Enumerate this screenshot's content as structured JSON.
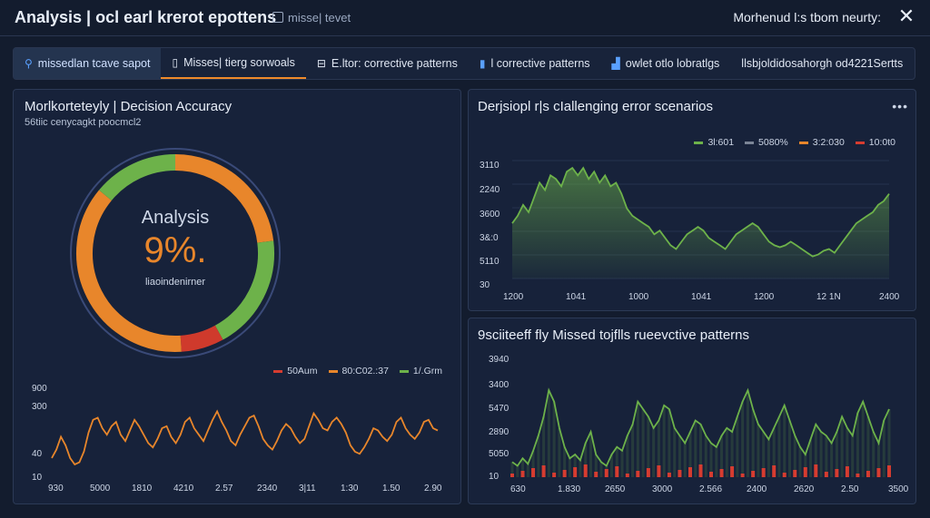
{
  "window": {
    "title": "Analysis | ocl earl krerot epottens",
    "subtitle": "misse| tevet",
    "right_title": "Morhenud l:s tbom neurty:",
    "close_icon": "close-icon"
  },
  "tabs": [
    {
      "label": "missedlan tcave sapot",
      "icon": "person-icon"
    },
    {
      "label": "Misses| tierg sorwoals",
      "icon": "document-icon"
    },
    {
      "label": "E.ltor: corrective patterns",
      "icon": "filter-icon"
    },
    {
      "label": "l corrective patterns",
      "icon": "bookmark-icon"
    },
    {
      "label": "owlet otlo lobratlgs",
      "icon": "chart-icon"
    },
    {
      "label": "llsbjoldidosahorgh od4221Sertts",
      "icon": ""
    }
  ],
  "left_panel": {
    "title": "Morlkorteteyly | Decision Accuracy",
    "subtitle": "56tiic cenycagkt poocmcl2",
    "donut": {
      "label": "Analysis",
      "value_text": "9%.",
      "caption": "liaoindenirner",
      "segments": [
        {
          "color": "#e8862b",
          "fraction": 0.23
        },
        {
          "color": "#6db24a",
          "fraction": 0.19
        },
        {
          "color": "#cf3a2c",
          "fraction": 0.07
        },
        {
          "color": "#e8862b",
          "fraction": 0.37
        },
        {
          "color": "#6db24a",
          "fraction": 0.14
        }
      ]
    },
    "chart_data": {
      "type": "line",
      "legend": [
        {
          "name": "50Aum",
          "color": "#d63c30"
        },
        {
          "name": "80:C02.:37",
          "color": "#e8862b"
        },
        {
          "name": "1/.Grm",
          "color": "#6db24a"
        }
      ],
      "yticks": [
        "900",
        "300",
        "40",
        "10"
      ],
      "xticks": [
        "930",
        "5000",
        "1810",
        "4210",
        "2.57",
        "2340",
        "3|11",
        "1:30",
        "1.50",
        "2.90"
      ],
      "series": [
        {
          "color": "#e8862b",
          "values": [
            60,
            100,
            160,
            120,
            60,
            30,
            40,
            90,
            180,
            240,
            250,
            200,
            170,
            210,
            230,
            170,
            140,
            190,
            240,
            210,
            170,
            130,
            110,
            150,
            200,
            210,
            160,
            130,
            170,
            230,
            250,
            200,
            170,
            140,
            190,
            240,
            280,
            230,
            190,
            140,
            120,
            170,
            210,
            250,
            260,
            210,
            150,
            120,
            100,
            140,
            190,
            220,
            200,
            160,
            130,
            150,
            210,
            270,
            240,
            200,
            190,
            230,
            250,
            220,
            180,
            120,
            90,
            80,
            110,
            150,
            200,
            190,
            160,
            140,
            170,
            230,
            250,
            200,
            170,
            150,
            180,
            230,
            240,
            200,
            190
          ],
          "ylim": [
            0,
            320
          ]
        }
      ]
    }
  },
  "right_top": {
    "title": "Derjsiopl r|s cIallenging error scenarios",
    "chart_data": {
      "type": "area",
      "legend": [
        {
          "name": "3l:601",
          "color": "#6db24a"
        },
        {
          "name": "5080%",
          "color": "#7b8596"
        },
        {
          "name": "3:2:030",
          "color": "#e8862b"
        },
        {
          "name": "10:0t0",
          "color": "#d63c30"
        }
      ],
      "yticks": [
        "3110",
        "2240",
        "3600",
        "3&:0",
        "5110",
        "30"
      ],
      "xticks": [
        "1200",
        "1041",
        "1000",
        "1041",
        "1200",
        "12 1N",
        "2400"
      ],
      "series": [
        {
          "color": "#6db24a",
          "values": [
            150,
            170,
            200,
            180,
            220,
            260,
            240,
            280,
            270,
            250,
            290,
            300,
            280,
            300,
            270,
            290,
            260,
            280,
            250,
            260,
            230,
            190,
            170,
            160,
            150,
            140,
            120,
            130,
            110,
            90,
            80,
            100,
            120,
            130,
            140,
            130,
            110,
            100,
            90,
            80,
            100,
            120,
            130,
            140,
            150,
            140,
            120,
            100,
            90,
            85,
            90,
            100,
            90,
            80,
            70,
            60,
            65,
            75,
            80,
            70,
            90,
            110,
            130,
            150,
            160,
            170,
            180,
            200,
            210,
            230
          ],
          "ylim": [
            0,
            320
          ]
        }
      ]
    }
  },
  "right_bottom": {
    "title": "9sciiteeff fly Missed tojflls rueevctive patterns",
    "chart_data": {
      "type": "line",
      "yticks": [
        "3940",
        "3400",
        "5470",
        "2890",
        "5050",
        "10"
      ],
      "xticks": [
        "630",
        "1.830",
        "2650",
        "3000",
        "2.566",
        "2400",
        "2620",
        "2.50",
        "3500"
      ],
      "series": [
        {
          "color": "#6db24a",
          "values": [
            40,
            30,
            50,
            35,
            70,
            110,
            160,
            230,
            200,
            130,
            80,
            50,
            60,
            45,
            90,
            120,
            60,
            40,
            30,
            60,
            80,
            70,
            110,
            140,
            200,
            180,
            160,
            130,
            150,
            190,
            180,
            130,
            110,
            90,
            120,
            150,
            140,
            110,
            90,
            80,
            110,
            130,
            120,
            160,
            200,
            230,
            180,
            140,
            120,
            100,
            130,
            160,
            190,
            150,
            110,
            80,
            60,
            100,
            140,
            120,
            110,
            90,
            120,
            160,
            130,
            110,
            170,
            200,
            160,
            120,
            90,
            150,
            180
          ],
          "ylim": [
            0,
            300
          ]
        }
      ]
    }
  }
}
